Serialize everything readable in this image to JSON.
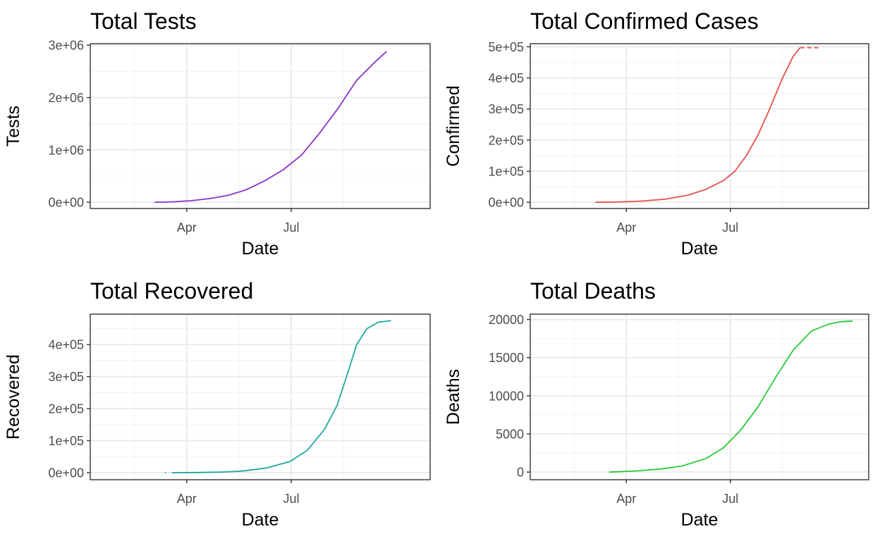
{
  "colors": {
    "tests": "#8c32c8",
    "confirmed": "#e6504b",
    "recovered": "#1fa8a0",
    "deaths": "#2bc93b",
    "grid_major": "#ebebeb",
    "grid_minor": "#f4f4f4",
    "panel_border": "#333333",
    "tick_text": "#4d4d4d"
  },
  "chart_data": [
    {
      "type": "line",
      "title": "Total Tests",
      "xlabel": "Date",
      "ylabel": "Tests",
      "x_type": "date",
      "xlim": [
        "2020-01-08",
        "2020-10-30"
      ],
      "x_ticks": [
        "2020-04-01",
        "2020-07-01"
      ],
      "x_tick_labels": [
        "Apr",
        "Jul"
      ],
      "ylim": [
        -120000,
        3030000
      ],
      "y_ticks": [
        0,
        1000000,
        2000000,
        3000000
      ],
      "y_tick_labels": [
        "0e+00",
        "1e+06",
        "2e+06",
        "3e+06"
      ],
      "grid": true,
      "series": [
        {
          "x": [
            "2020-03-04",
            "2020-03-20",
            "2020-04-05",
            "2020-04-21",
            "2020-05-07",
            "2020-05-23",
            "2020-06-08",
            "2020-06-24",
            "2020-07-10",
            "2020-07-26",
            "2020-08-11",
            "2020-08-27",
            "2020-09-12",
            "2020-09-22"
          ],
          "values": [
            0,
            8000,
            30000,
            70000,
            130000,
            240000,
            410000,
            620000,
            900000,
            1330000,
            1800000,
            2330000,
            2680000,
            2880000
          ]
        }
      ]
    },
    {
      "type": "line",
      "title": "Total Confirmed Cases",
      "xlabel": "Date",
      "ylabel": "Confirmed",
      "x_type": "date",
      "xlim": [
        "2020-01-08",
        "2020-10-30"
      ],
      "x_ticks": [
        "2020-04-01",
        "2020-07-01"
      ],
      "x_tick_labels": [
        "Apr",
        "Jul"
      ],
      "ylim": [
        -20000,
        510000
      ],
      "y_ticks": [
        0,
        100000,
        200000,
        300000,
        400000,
        500000
      ],
      "y_tick_labels": [
        "0e+00",
        "1e+05",
        "2e+05",
        "3e+05",
        "4e+05",
        "5e+05"
      ],
      "grid": true,
      "series": [
        {
          "x": [
            "2020-03-05",
            "2020-03-25",
            "2020-04-15",
            "2020-05-05",
            "2020-05-25",
            "2020-06-10",
            "2020-06-25",
            "2020-07-05",
            "2020-07-15",
            "2020-07-25",
            "2020-08-05",
            "2020-08-15",
            "2020-08-25",
            "2020-08-31"
          ],
          "values": [
            0,
            1000,
            4000,
            10000,
            23000,
            42000,
            70000,
            100000,
            150000,
            215000,
            305000,
            395000,
            470000,
            497000
          ]
        },
        {
          "x": [
            "2020-08-31",
            "2020-09-16"
          ],
          "values": [
            497000,
            497000
          ],
          "dashed": true
        }
      ]
    },
    {
      "type": "line",
      "title": "Total Recovered",
      "xlabel": "Date",
      "ylabel": "Recovered",
      "x_type": "date",
      "xlim": [
        "2020-01-08",
        "2020-10-30"
      ],
      "x_ticks": [
        "2020-04-01",
        "2020-07-01"
      ],
      "x_tick_labels": [
        "Apr",
        "Jul"
      ],
      "ylim": [
        -22000,
        495000
      ],
      "y_ticks": [
        0,
        100000,
        200000,
        300000,
        400000
      ],
      "y_tick_labels": [
        "0e+00",
        "1e+05",
        "2e+05",
        "3e+05",
        "4e+05"
      ],
      "grid": true,
      "series": [
        {
          "x": [
            "2020-03-13",
            "2020-03-14"
          ],
          "values": [
            0,
            0
          ]
        },
        {
          "x": [
            "2020-03-19",
            "2020-04-10",
            "2020-05-01",
            "2020-05-20",
            "2020-06-10",
            "2020-06-30",
            "2020-07-15",
            "2020-07-30",
            "2020-08-10",
            "2020-08-20",
            "2020-08-27",
            "2020-09-05",
            "2020-09-15",
            "2020-09-26"
          ],
          "values": [
            0,
            500,
            2000,
            5000,
            15000,
            35000,
            70000,
            135000,
            210000,
            320000,
            400000,
            450000,
            470000,
            475000
          ]
        }
      ]
    },
    {
      "type": "line",
      "title": "Total Deaths",
      "xlabel": "Date",
      "ylabel": "Deaths",
      "x_type": "date",
      "xlim": [
        "2020-01-08",
        "2020-10-30"
      ],
      "x_ticks": [
        "2020-04-01",
        "2020-07-01"
      ],
      "x_tick_labels": [
        "Apr",
        "Jul"
      ],
      "ylim": [
        -1000,
        20700
      ],
      "y_ticks": [
        0,
        5000,
        10000,
        15000,
        20000
      ],
      "y_tick_labels": [
        "0",
        "5000",
        "10000",
        "15000",
        "20000"
      ],
      "grid": true,
      "series": [
        {
          "x": [
            "2020-03-17",
            "2020-04-10",
            "2020-05-01",
            "2020-05-20",
            "2020-06-10",
            "2020-06-25",
            "2020-07-10",
            "2020-07-25",
            "2020-08-10",
            "2020-08-25",
            "2020-09-10",
            "2020-09-25",
            "2020-10-05",
            "2020-10-16"
          ],
          "values": [
            0,
            150,
            400,
            800,
            1800,
            3200,
            5500,
            8500,
            12500,
            16000,
            18500,
            19400,
            19700,
            19800
          ]
        }
      ]
    }
  ]
}
